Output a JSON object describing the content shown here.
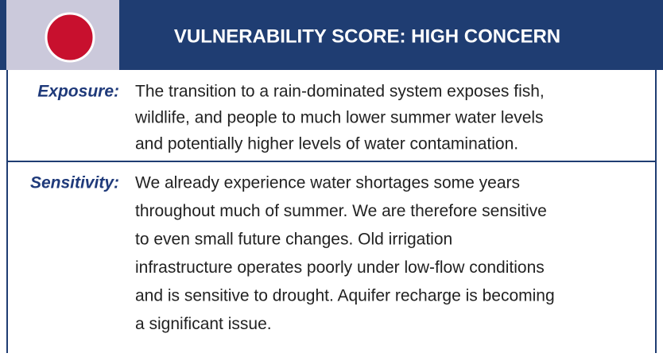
{
  "header": {
    "title": "VULNERABILITY SCORE: HIGH CONCERN"
  },
  "rows": [
    {
      "label": "Exposure:",
      "lines": [
        "The transition to a rain-dominated system exposes fish,",
        "wildlife, and people to much lower summer water levels",
        "and potentially higher levels of water contamination."
      ]
    },
    {
      "label": "Sensitivity:",
      "lines": [
        "We already experience water shortages some years",
        "throughout much of summer.  We are therefore sensitive",
        "to even small future changes.  Old irrigation",
        "infrastructure operates poorly under low-flow conditions",
        "and is sensitive to drought.  Aquifer recharge is becoming",
        "a significant issue."
      ]
    }
  ]
}
